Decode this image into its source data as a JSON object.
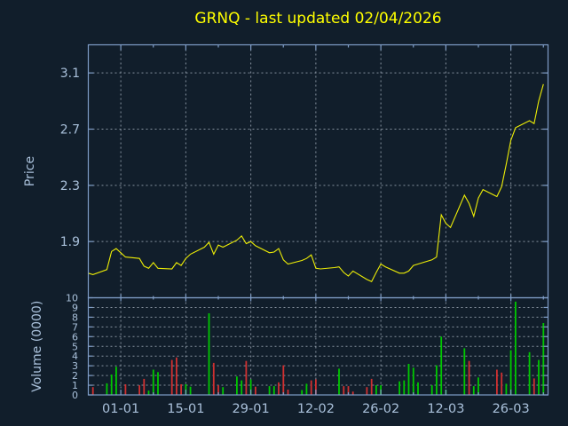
{
  "figure": {
    "title": "GRNQ - last updated 02/04/2026",
    "background": "#111e2b"
  },
  "chart_data": {
    "type": "line+bar",
    "title": "GRNQ - last updated 02/04/2026",
    "x_axis": {
      "tick_labels": [
        "01-01",
        "15-01",
        "29-01",
        "12-02",
        "26-02",
        "12-03",
        "26-03"
      ],
      "tick_day_offsets": [
        0,
        14,
        28,
        42,
        56,
        70,
        84
      ],
      "minor_day_offsets": [
        7,
        21,
        35,
        49,
        63,
        77,
        91
      ],
      "xlim_day_offsets": [
        -7,
        92
      ],
      "grid": "dashed"
    },
    "price_panel": {
      "ylabel": "Price",
      "ytick_labels": [
        "1.9",
        "2.3",
        "2.7",
        "3.1"
      ],
      "yticks": [
        1.9,
        2.3,
        2.7,
        3.1
      ],
      "ylim": [
        1.5,
        3.3
      ],
      "grid": "dashed"
    },
    "volume_panel": {
      "ylabel": "Volume (0000)",
      "ytick_labels": [
        "0",
        "1",
        "2",
        "3",
        "4",
        "5",
        "6",
        "7",
        "8",
        "9",
        "10"
      ],
      "yticks": [
        0,
        1,
        2,
        3,
        4,
        5,
        6,
        7,
        8,
        9,
        10
      ],
      "ylim": [
        0,
        10
      ],
      "grid": "dashed"
    },
    "colors": {
      "background": "#111e2b",
      "title": "#ffff00",
      "price_line": "#eded06",
      "volume_up": "#00c800",
      "volume_down": "#d03030",
      "spine": "#7f9dc7",
      "grid": "#9ba7b4",
      "tick_label": "#a9c0da"
    },
    "points": [
      {
        "date": "2025-12-25",
        "price": 1.675,
        "volume": 0,
        "dir": "down"
      },
      {
        "date": "2025-12-26",
        "price": 1.665,
        "volume": 0.8,
        "dir": "down"
      },
      {
        "date": "2025-12-29",
        "price": 1.7,
        "volume": 1.2,
        "dir": "up"
      },
      {
        "date": "2025-12-30",
        "price": 1.83,
        "volume": 2.1,
        "dir": "up"
      },
      {
        "date": "2025-12-31",
        "price": 1.85,
        "volume": 2.9,
        "dir": "up"
      },
      {
        "date": "2026-01-01",
        "price": 1.82,
        "volume": 0,
        "dir": "down"
      },
      {
        "date": "2026-01-02",
        "price": 1.79,
        "volume": 1.1,
        "dir": "down"
      },
      {
        "date": "2026-01-05",
        "price": 1.78,
        "volume": 1.0,
        "dir": "down"
      },
      {
        "date": "2026-01-06",
        "price": 1.725,
        "volume": 1.65,
        "dir": "down"
      },
      {
        "date": "2026-01-07",
        "price": 1.71,
        "volume": 0.45,
        "dir": "up"
      },
      {
        "date": "2026-01-08",
        "price": 1.75,
        "volume": 2.6,
        "dir": "up"
      },
      {
        "date": "2026-01-09",
        "price": 1.71,
        "volume": 2.35,
        "dir": "up"
      },
      {
        "date": "2026-01-12",
        "price": 1.705,
        "volume": 3.6,
        "dir": "down"
      },
      {
        "date": "2026-01-13",
        "price": 1.75,
        "volume": 3.85,
        "dir": "down"
      },
      {
        "date": "2026-01-14",
        "price": 1.73,
        "volume": 1.1,
        "dir": "down"
      },
      {
        "date": "2026-01-15",
        "price": 1.78,
        "volume": 1.1,
        "dir": "up"
      },
      {
        "date": "2026-01-16",
        "price": 1.81,
        "volume": 0.85,
        "dir": "up"
      },
      {
        "date": "2026-01-19",
        "price": 1.86,
        "volume": 0,
        "dir": "up"
      },
      {
        "date": "2026-01-20",
        "price": 1.895,
        "volume": 8.4,
        "dir": "up"
      },
      {
        "date": "2026-01-21",
        "price": 1.81,
        "volume": 3.3,
        "dir": "down"
      },
      {
        "date": "2026-01-22",
        "price": 1.875,
        "volume": 1.0,
        "dir": "down"
      },
      {
        "date": "2026-01-23",
        "price": 1.86,
        "volume": 0.8,
        "dir": "up"
      },
      {
        "date": "2026-01-26",
        "price": 1.91,
        "volume": 1.9,
        "dir": "up"
      },
      {
        "date": "2026-01-27",
        "price": 1.94,
        "volume": 1.5,
        "dir": "up"
      },
      {
        "date": "2026-01-28",
        "price": 1.885,
        "volume": 3.5,
        "dir": "down"
      },
      {
        "date": "2026-01-29",
        "price": 1.9,
        "volume": 1.6,
        "dir": "up"
      },
      {
        "date": "2026-01-30",
        "price": 1.87,
        "volume": 0.85,
        "dir": "down"
      },
      {
        "date": "2026-02-02",
        "price": 1.82,
        "volume": 0.9,
        "dir": "up"
      },
      {
        "date": "2026-02-03",
        "price": 1.825,
        "volume": 0.9,
        "dir": "up"
      },
      {
        "date": "2026-02-04",
        "price": 1.85,
        "volume": 1.3,
        "dir": "down"
      },
      {
        "date": "2026-02-05",
        "price": 1.77,
        "volume": 3.05,
        "dir": "down"
      },
      {
        "date": "2026-02-06",
        "price": 1.74,
        "volume": 0.55,
        "dir": "down"
      },
      {
        "date": "2026-02-09",
        "price": 1.765,
        "volume": 0.5,
        "dir": "up"
      },
      {
        "date": "2026-02-10",
        "price": 1.78,
        "volume": 1.15,
        "dir": "up"
      },
      {
        "date": "2026-02-11",
        "price": 1.805,
        "volume": 1.5,
        "dir": "down"
      },
      {
        "date": "2026-02-12",
        "price": 1.71,
        "volume": 1.6,
        "dir": "down"
      },
      {
        "date": "2026-02-13",
        "price": 1.705,
        "volume": 0,
        "dir": "down"
      },
      {
        "date": "2026-02-16",
        "price": 1.715,
        "volume": 0,
        "dir": "up"
      },
      {
        "date": "2026-02-17",
        "price": 1.72,
        "volume": 2.7,
        "dir": "up"
      },
      {
        "date": "2026-02-18",
        "price": 1.68,
        "volume": 0.9,
        "dir": "down"
      },
      {
        "date": "2026-02-19",
        "price": 1.655,
        "volume": 0.9,
        "dir": "down"
      },
      {
        "date": "2026-02-20",
        "price": 1.69,
        "volume": 0.35,
        "dir": "down"
      },
      {
        "date": "2026-02-23",
        "price": 1.63,
        "volume": 0.8,
        "dir": "down"
      },
      {
        "date": "2026-02-24",
        "price": 1.615,
        "volume": 1.65,
        "dir": "down"
      },
      {
        "date": "2026-02-25",
        "price": 1.68,
        "volume": 1.0,
        "dir": "up"
      },
      {
        "date": "2026-02-26",
        "price": 1.74,
        "volume": 1.0,
        "dir": "up"
      },
      {
        "date": "2026-02-27",
        "price": 1.72,
        "volume": 0,
        "dir": "down"
      },
      {
        "date": "2026-03-02",
        "price": 1.675,
        "volume": 1.4,
        "dir": "up"
      },
      {
        "date": "2026-03-03",
        "price": 1.675,
        "volume": 1.5,
        "dir": "up"
      },
      {
        "date": "2026-03-04",
        "price": 1.69,
        "volume": 3.2,
        "dir": "up"
      },
      {
        "date": "2026-03-05",
        "price": 1.73,
        "volume": 2.8,
        "dir": "up"
      },
      {
        "date": "2026-03-06",
        "price": 1.74,
        "volume": 1.3,
        "dir": "up"
      },
      {
        "date": "2026-03-09",
        "price": 1.77,
        "volume": 1.0,
        "dir": "up"
      },
      {
        "date": "2026-03-10",
        "price": 1.79,
        "volume": 3.05,
        "dir": "up"
      },
      {
        "date": "2026-03-11",
        "price": 2.09,
        "volume": 6.0,
        "dir": "up"
      },
      {
        "date": "2026-03-12",
        "price": 2.03,
        "volume": 0.55,
        "dir": "up"
      },
      {
        "date": "2026-03-13",
        "price": 2.0,
        "volume": 0,
        "dir": "down"
      },
      {
        "date": "2026-03-16",
        "price": 2.23,
        "volume": 4.8,
        "dir": "up"
      },
      {
        "date": "2026-03-17",
        "price": 2.17,
        "volume": 3.5,
        "dir": "down"
      },
      {
        "date": "2026-03-18",
        "price": 2.08,
        "volume": 0.9,
        "dir": "up"
      },
      {
        "date": "2026-03-19",
        "price": 2.21,
        "volume": 1.8,
        "dir": "up"
      },
      {
        "date": "2026-03-20",
        "price": 2.27,
        "volume": 0,
        "dir": "up"
      },
      {
        "date": "2026-03-23",
        "price": 2.22,
        "volume": 2.6,
        "dir": "down"
      },
      {
        "date": "2026-03-24",
        "price": 2.29,
        "volume": 2.3,
        "dir": "down"
      },
      {
        "date": "2026-03-25",
        "price": 2.45,
        "volume": 1.15,
        "dir": "up"
      },
      {
        "date": "2026-03-26",
        "price": 2.62,
        "volume": 4.6,
        "dir": "up"
      },
      {
        "date": "2026-03-27",
        "price": 2.71,
        "volume": 9.6,
        "dir": "up"
      },
      {
        "date": "2026-03-30",
        "price": 2.76,
        "volume": 4.4,
        "dir": "up"
      },
      {
        "date": "2026-03-31",
        "price": 2.74,
        "volume": 1.7,
        "dir": "down"
      },
      {
        "date": "2026-04-01",
        "price": 2.9,
        "volume": 3.6,
        "dir": "up"
      },
      {
        "date": "2026-04-02",
        "price": 3.02,
        "volume": 7.4,
        "dir": "up"
      }
    ]
  }
}
